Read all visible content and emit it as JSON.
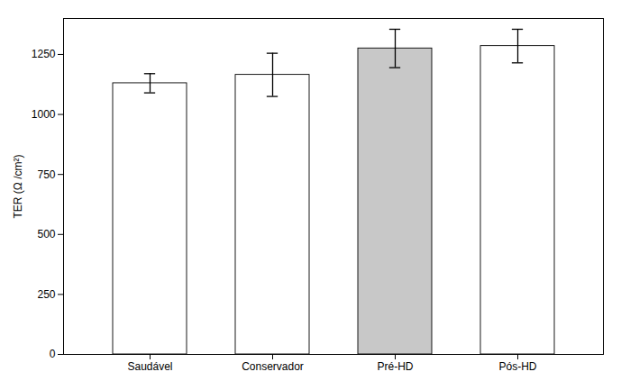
{
  "chart_data": {
    "type": "bar",
    "categories": [
      "Saudável",
      "Conservador",
      "Pré-HD",
      "Pós-HD"
    ],
    "values": [
      1130,
      1165,
      1275,
      1285
    ],
    "errors": [
      40,
      90,
      80,
      70
    ],
    "colors": [
      "white",
      "white",
      "#c8c8c8",
      "white"
    ],
    "ylabel": "TER (Ω /cm²)",
    "ylim": [
      0,
      1400
    ],
    "yticks": [
      0,
      250,
      500,
      750,
      1000,
      1250
    ],
    "grid": false
  }
}
